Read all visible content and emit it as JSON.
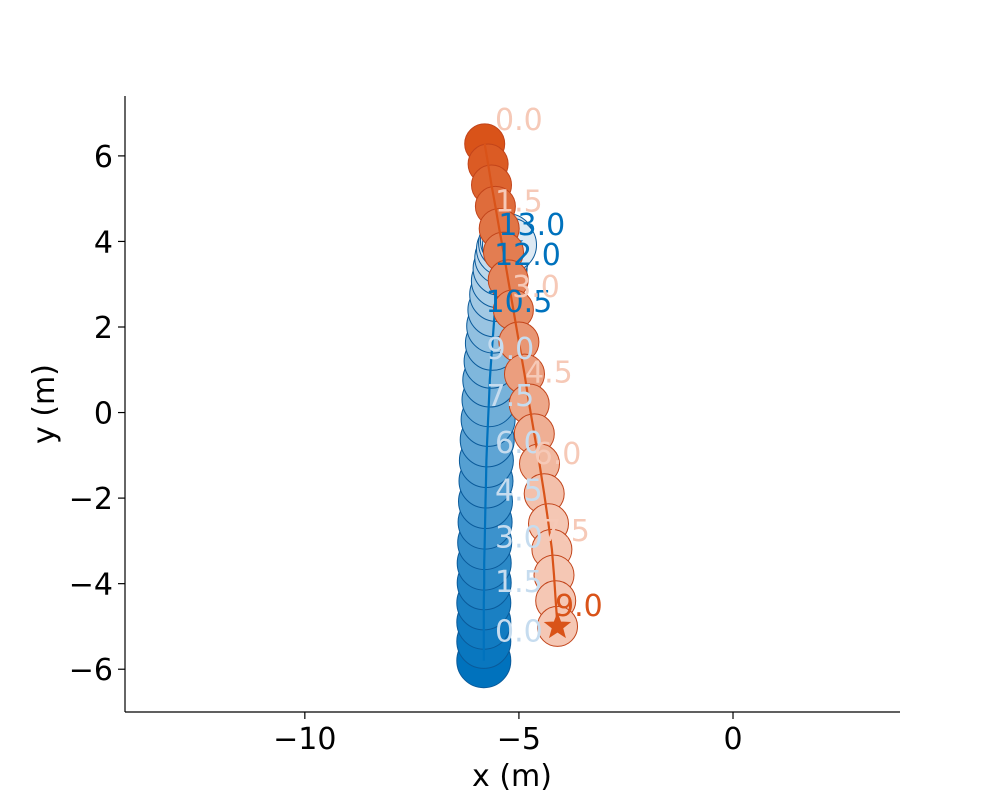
{
  "chart_data": {
    "type": "scatter",
    "title": "",
    "xlabel": "x (m)",
    "ylabel": "y (m)",
    "xlim": [
      -14.2,
      3.9
    ],
    "ylim": [
      -7.0,
      7.4
    ],
    "xticks": [
      -10,
      -5,
      0
    ],
    "yticks": [
      -6,
      -4,
      -2,
      0,
      2,
      4,
      6
    ],
    "xtick_labels": [
      "−10",
      "−5",
      "0"
    ],
    "ytick_labels": [
      "−6",
      "−4",
      "−2",
      "0",
      "2",
      "4",
      "6"
    ],
    "grid": false,
    "legend": "none",
    "series": [
      {
        "color": "#0072BD",
        "colors": {
          "edge": "#0a5a9a",
          "fill_start": "#0072BD",
          "fill_end": "#dde9f3",
          "label": "#0072BD",
          "faded_label": "#c6dcef"
        },
        "t": [
          0.0,
          0.5,
          1.0,
          1.5,
          2.0,
          2.5,
          3.0,
          3.5,
          4.0,
          4.5,
          5.0,
          5.5,
          6.0,
          6.5,
          7.0,
          7.5,
          8.0,
          8.5,
          9.0,
          9.5,
          10.0,
          10.5,
          11.0,
          11.5,
          12.0,
          12.5,
          13.0
        ],
        "x": [
          -5.82,
          -5.82,
          -5.82,
          -5.82,
          -5.81,
          -5.81,
          -5.8,
          -5.79,
          -5.78,
          -5.77,
          -5.76,
          -5.74,
          -5.72,
          -5.7,
          -5.68,
          -5.65,
          -5.62,
          -5.59,
          -5.56,
          -5.52,
          -5.48,
          -5.44,
          -5.4,
          -5.36,
          -5.31,
          -5.27,
          -5.22
        ],
        "y": [
          -5.8,
          -5.35,
          -4.9,
          -4.45,
          -3.98,
          -3.52,
          -3.04,
          -2.56,
          -2.08,
          -1.6,
          -1.12,
          -0.64,
          -0.16,
          0.3,
          0.76,
          1.2,
          1.62,
          2.02,
          2.4,
          2.76,
          3.08,
          3.37,
          3.62,
          3.82,
          3.96,
          4.02,
          3.92
        ],
        "time_labels": [
          {
            "t": 0.0,
            "text": "0.0",
            "x": -5.0,
            "y": -5.35,
            "faded": true
          },
          {
            "t": 1.5,
            "text": "1.5",
            "x": -5.0,
            "y": -4.2,
            "faded": true
          },
          {
            "t": 3.0,
            "text": "3.0",
            "x": -5.0,
            "y": -3.15,
            "faded": true
          },
          {
            "t": 4.5,
            "text": "4.5",
            "x": -5.0,
            "y": -2.05,
            "faded": true
          },
          {
            "t": 6.0,
            "text": "6.0",
            "x": -5.0,
            "y": -0.95,
            "faded": true
          },
          {
            "t": 7.5,
            "text": "7.5",
            "x": -5.2,
            "y": 0.15,
            "faded": true
          },
          {
            "t": 9.0,
            "text": "9.0",
            "x": -5.2,
            "y": 1.25,
            "faded": true
          },
          {
            "t": 10.5,
            "text": "10.5",
            "x": -5.0,
            "y": 2.35,
            "faded": false
          },
          {
            "t": 12.0,
            "text": "12.0",
            "x": -4.8,
            "y": 3.45,
            "faded": false
          },
          {
            "t": 13.0,
            "text": "13.0",
            "x": -4.7,
            "y": 4.15,
            "faded": false
          }
        ],
        "end_marker": "star"
      },
      {
        "color": "#D95319",
        "colors": {
          "edge": "#c2441a",
          "fill_start": "#D95319",
          "fill_end": "#f5c7b4",
          "label": "#D95319",
          "faded_label": "#f6c9b7"
        },
        "t": [
          0.0,
          0.5,
          1.0,
          1.5,
          2.0,
          2.5,
          3.0,
          3.5,
          4.0,
          4.5,
          5.0,
          5.5,
          6.0,
          6.5,
          7.0,
          7.5,
          8.0,
          8.5,
          9.0
        ],
        "x": [
          -5.8,
          -5.72,
          -5.64,
          -5.55,
          -5.46,
          -5.36,
          -5.25,
          -5.13,
          -5.0,
          -4.87,
          -4.76,
          -4.64,
          -4.52,
          -4.41,
          -4.31,
          -4.23,
          -4.18,
          -4.14,
          -4.1
        ],
        "y": [
          6.28,
          5.81,
          5.32,
          4.82,
          4.3,
          3.75,
          3.1,
          2.4,
          1.65,
          0.9,
          0.2,
          -0.5,
          -1.2,
          -1.9,
          -2.6,
          -3.2,
          -3.8,
          -4.4,
          -5.0
        ],
        "time_labels": [
          {
            "t": 0.0,
            "text": "0.0",
            "x": -5.0,
            "y": 6.6,
            "faded": true
          },
          {
            "t": 1.5,
            "text": "1.5",
            "x": -5.0,
            "y": 4.7,
            "faded": true
          },
          {
            "t": 3.0,
            "text": "3.0",
            "x": -4.6,
            "y": 2.7,
            "faded": true
          },
          {
            "t": 4.5,
            "text": "4.5",
            "x": -4.3,
            "y": 0.7,
            "faded": true
          },
          {
            "t": 6.0,
            "text": "6.0",
            "x": -4.1,
            "y": -1.2,
            "faded": true
          },
          {
            "t": 7.5,
            "text": "7.5",
            "x": -3.9,
            "y": -3.0,
            "faded": true
          },
          {
            "t": 9.0,
            "text": "9.0",
            "x": -3.6,
            "y": -4.75,
            "faded": false
          }
        ],
        "end_marker": "star"
      }
    ]
  }
}
